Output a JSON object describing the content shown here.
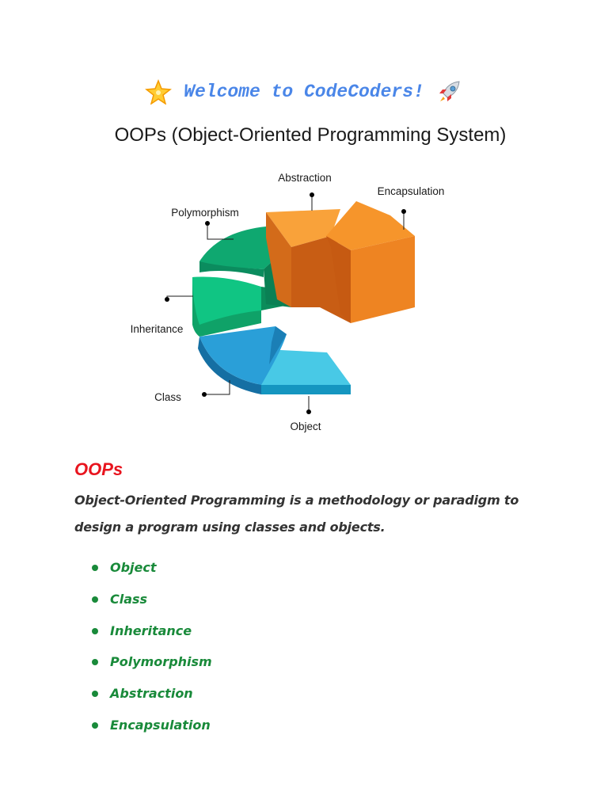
{
  "header": {
    "welcome_text": "Welcome to CodeCoders!",
    "left_icon": "glowing-star-icon",
    "right_icon": "rocket-icon"
  },
  "diagram": {
    "title": "OOPs (Object-Oriented Programming System)",
    "labels": {
      "abstraction": "Abstraction",
      "encapsulation": "Encapsulation",
      "polymorphism": "Polymorphism",
      "inheritance": "Inheritance",
      "class": "Class",
      "object": "Object"
    },
    "colors": {
      "abstraction": "#f9a23a",
      "encapsulation": "#f28a1e",
      "polymorphism": "#0fa870",
      "inheritance": "#10c583",
      "class": "#2a9fd8",
      "object": "#48c9e6"
    }
  },
  "section": {
    "heading": "OOPs",
    "description_line1": "Object-Oriented Programming is a methodology or paradigm to",
    "description_line2": "design a program using classes and objects.",
    "items": [
      "Object",
      "Class",
      "Inheritance",
      "Polymorphism",
      "Abstraction",
      "Encapsulation"
    ]
  }
}
